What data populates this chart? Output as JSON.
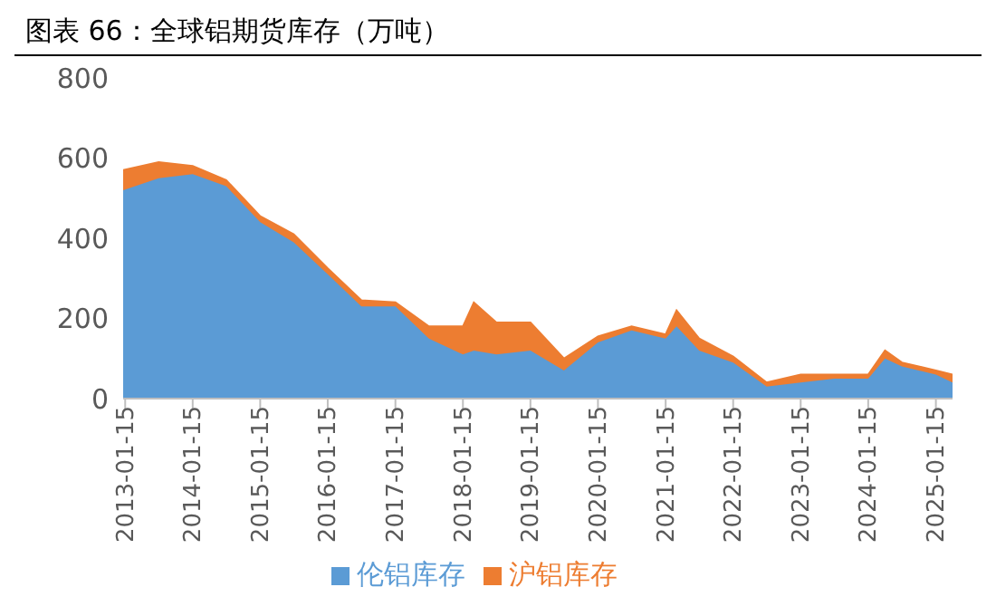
{
  "chart_data": {
    "type": "area",
    "title": "图表 66：全球铝期货库存（万吨）",
    "stacked": true,
    "x": [
      "2013-01-04",
      "2013-07-15",
      "2014-01-15",
      "2014-07-15",
      "2015-01-15",
      "2015-07-15",
      "2016-01-15",
      "2016-07-15",
      "2017-01-15",
      "2017-07-15",
      "2018-01-15",
      "2018-03-15",
      "2018-07-15",
      "2019-01-15",
      "2019-07-15",
      "2020-01-15",
      "2020-07-15",
      "2021-01-15",
      "2021-03-15",
      "2021-07-15",
      "2022-01-15",
      "2022-07-15",
      "2023-01-15",
      "2023-07-15",
      "2024-01-15",
      "2024-04-15",
      "2024-07-15",
      "2025-01-15",
      "2025-04-15"
    ],
    "series": [
      {
        "name": "伦铝库存",
        "color": "#5b9bd5",
        "values": [
          520,
          550,
          560,
          530,
          440,
          390,
          310,
          230,
          230,
          150,
          110,
          120,
          110,
          120,
          70,
          140,
          170,
          150,
          180,
          120,
          90,
          30,
          40,
          50,
          50,
          100,
          80,
          60,
          40
        ]
      },
      {
        "name": "沪铝库存",
        "color": "#ed7d31",
        "values": [
          50,
          40,
          20,
          15,
          15,
          20,
          15,
          15,
          10,
          30,
          70,
          120,
          80,
          70,
          30,
          15,
          10,
          10,
          40,
          30,
          15,
          10,
          20,
          10,
          10,
          20,
          10,
          10,
          20
        ]
      }
    ],
    "ylim": [
      0,
      800
    ],
    "yticks": [
      0,
      200,
      400,
      600,
      800
    ],
    "xlim": [
      "2013-01-04",
      "2025-04-15"
    ],
    "xticks": [
      "2013-01-15",
      "2014-01-15",
      "2015-01-15",
      "2016-01-15",
      "2017-01-15",
      "2018-01-15",
      "2019-01-15",
      "2020-01-15",
      "2021-01-15",
      "2022-01-15",
      "2023-01-15",
      "2024-01-15",
      "2025-01-15"
    ],
    "grid": false,
    "legend": "bottom"
  }
}
